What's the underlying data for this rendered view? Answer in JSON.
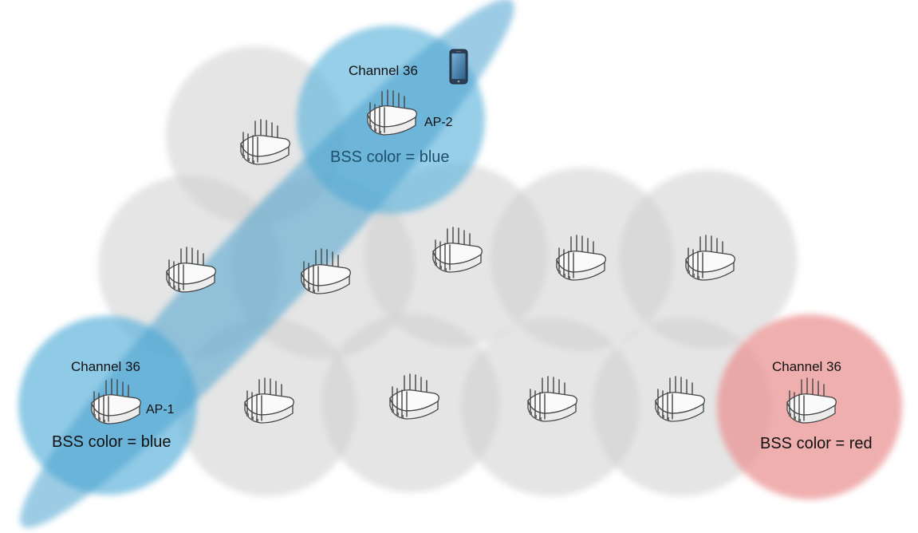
{
  "colors": {
    "blue_bss": "#5fb4dc",
    "red_bss": "#ea8d8d",
    "neutral_cell": "#cfcfcf"
  },
  "labels": {
    "ap2_channel": "Channel 36",
    "ap2_name": "AP-2",
    "ap2_bss": "BSS color = blue",
    "ap1_channel": "Channel 36",
    "ap1_name": "AP-1",
    "ap1_bss": "BSS color = blue",
    "red_channel": "Channel 36",
    "red_bss": "BSS color = red"
  },
  "icons": [
    "access-point-icon",
    "smartphone-icon"
  ]
}
